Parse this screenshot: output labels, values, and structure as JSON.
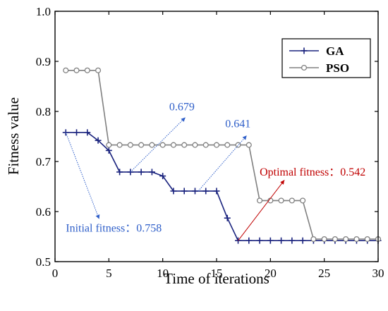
{
  "chart_data": {
    "type": "line",
    "xlabel": "Time of iterations",
    "ylabel": "Fitness value",
    "xlim": [
      0,
      30
    ],
    "ylim": [
      0.5,
      1.0
    ],
    "xticks": [
      0,
      5,
      10,
      15,
      20,
      25,
      30
    ],
    "yticks": [
      0.5,
      0.6,
      0.7,
      0.8,
      0.9,
      1.0
    ],
    "grid": false,
    "legend_position": "top-right",
    "series": [
      {
        "name": "GA",
        "color": "#1a237e",
        "marker": "plus",
        "x": [
          1,
          2,
          3,
          4,
          5,
          6,
          7,
          8,
          9,
          10,
          11,
          12,
          13,
          14,
          15,
          16,
          17,
          18,
          19,
          20,
          21,
          22,
          23,
          24,
          25,
          26,
          27,
          28,
          29,
          30
        ],
        "y": [
          0.758,
          0.758,
          0.758,
          0.742,
          0.722,
          0.679,
          0.679,
          0.679,
          0.679,
          0.671,
          0.641,
          0.641,
          0.641,
          0.641,
          0.641,
          0.587,
          0.542,
          0.542,
          0.542,
          0.542,
          0.542,
          0.542,
          0.542,
          0.542,
          0.542,
          0.542,
          0.542,
          0.542,
          0.542,
          0.542
        ]
      },
      {
        "name": "PSO",
        "color": "#808080",
        "marker": "circle",
        "x": [
          1,
          2,
          3,
          4,
          5,
          6,
          7,
          8,
          9,
          10,
          11,
          12,
          13,
          14,
          15,
          16,
          17,
          18,
          19,
          20,
          21,
          22,
          23,
          24,
          25,
          26,
          27,
          28,
          29,
          30
        ],
        "y": [
          0.882,
          0.882,
          0.882,
          0.882,
          0.733,
          0.733,
          0.733,
          0.733,
          0.733,
          0.733,
          0.733,
          0.733,
          0.733,
          0.733,
          0.733,
          0.733,
          0.733,
          0.733,
          0.622,
          0.622,
          0.622,
          0.622,
          0.622,
          0.545,
          0.545,
          0.545,
          0.545,
          0.545,
          0.545,
          0.545
        ]
      }
    ],
    "annotations": [
      {
        "text": "0.679",
        "color": "#2f5fc9",
        "style": "dotted",
        "from": [
          7,
          0.679
        ],
        "to": [
          12.1,
          0.788
        ],
        "label_at": [
          10.6,
          0.802
        ]
      },
      {
        "text": "0.641",
        "color": "#2f5fc9",
        "style": "dotted",
        "from": [
          13.3,
          0.641
        ],
        "to": [
          17.8,
          0.752
        ],
        "label_at": [
          15.8,
          0.768
        ]
      },
      {
        "text": "Optimal fitness：0.542",
        "color": "#c00000",
        "style": "solid",
        "from": [
          17,
          0.542
        ],
        "to": [
          21.3,
          0.663
        ],
        "label_at": [
          19.0,
          0.672
        ]
      },
      {
        "text": "Initial fitness：0.758",
        "color": "#2f5fc9",
        "style": "dotted",
        "from": [
          1,
          0.758
        ],
        "to": [
          4.1,
          0.585
        ],
        "label_at": [
          1.0,
          0.56
        ]
      }
    ]
  }
}
